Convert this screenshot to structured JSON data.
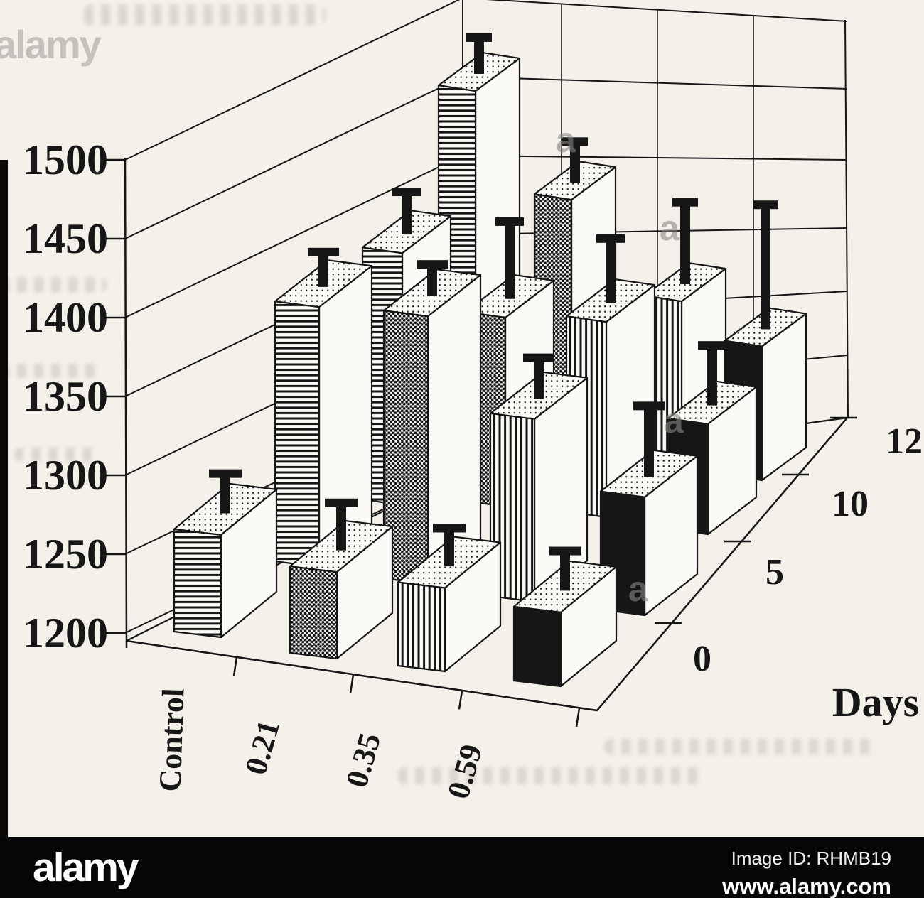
{
  "watermark": {
    "corner_logo": "alamy",
    "tile_letter": "a",
    "bar": {
      "brand": "alamy",
      "image_id": "Image ID: RHMB19",
      "url": "www.alamy.com"
    }
  },
  "chart_data": {
    "type": "bar",
    "projection": "3d-perspective",
    "title": "",
    "y_axis": {
      "range": [
        1200,
        1500
      ],
      "tick_step": 50,
      "tick_labels": [
        "1200",
        "1250",
        "1300",
        "1350",
        "1400",
        "1450",
        "1500"
      ]
    },
    "x_axis": {
      "categories": [
        "Control",
        "0.21",
        "0.35",
        "0.59"
      ]
    },
    "depth_axis": {
      "label": "Days",
      "values": [
        "0",
        "5",
        "10",
        "12"
      ]
    },
    "series": [
      {
        "name": "Control",
        "pattern": "horizontal-stripes",
        "values": [
          1265,
          1365,
          1360,
          1430
        ],
        "errors_upper": [
          38,
          34,
          38,
          33
        ]
      },
      {
        "name": "0.21",
        "pattern": "dense-dots",
        "values": [
          1255,
          1370,
          1320,
          1370
        ],
        "errors_upper": [
          43,
          32,
          60,
          36
        ]
      },
      {
        "name": "0.35",
        "pattern": "vertical-stripes",
        "values": [
          1253,
          1316,
          1324,
          1310
        ],
        "errors_upper": [
          37,
          38,
          52,
          62
        ]
      },
      {
        "name": "0.59",
        "pattern": "solid-black",
        "values": [
          1247,
          1275,
          1270,
          1285
        ],
        "errors_upper": [
          38,
          57,
          49,
          89
        ]
      }
    ],
    "legend": "none",
    "grid": true,
    "colors": {
      "ink": "#161616",
      "paper": "#f4f0ea",
      "bar_face": "#fbfaf7"
    }
  }
}
